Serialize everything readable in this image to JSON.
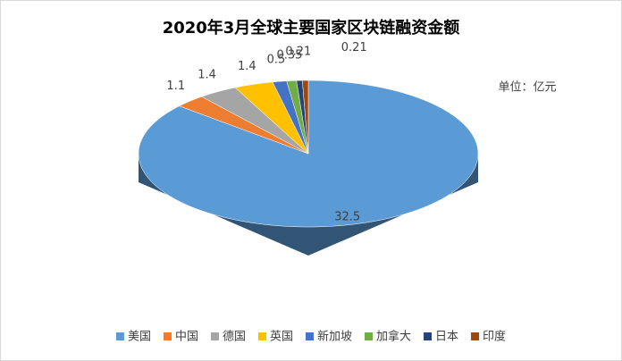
{
  "chart_data": {
    "type": "pie3d",
    "title": "2020年3月全球主要国家区块链融资金额",
    "unit_label": "单位：亿元",
    "categories": [
      "美国",
      "中国",
      "德国",
      "英国",
      "新加坡",
      "加拿大",
      "日本",
      "印度"
    ],
    "values": [
      32.5,
      1.1,
      1.4,
      1.4,
      0.5,
      0.35,
      0.21,
      0.21
    ],
    "colors": [
      "#5b9bd5",
      "#ed7d31",
      "#a5a5a5",
      "#ffc000",
      "#4472c4",
      "#70ad47",
      "#264478",
      "#9e480e"
    ],
    "legend": "bottom"
  }
}
